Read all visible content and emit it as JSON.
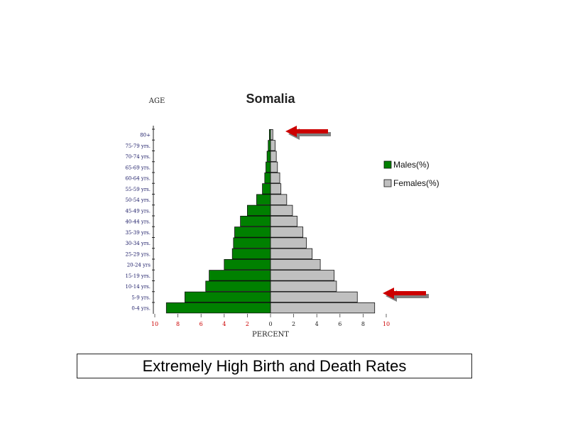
{
  "colors": {
    "male": "#008000",
    "female": "#c0c0c0",
    "arrow": "#cc0000",
    "arrow_shadow": "#808080",
    "tick_red": "#cc0000"
  },
  "chart_data": {
    "type": "bar",
    "title": "Somalia",
    "ylabel": "AGE",
    "xlabel": "PERCENT",
    "xlim": [
      -10,
      10
    ],
    "x_ticks": [
      "10",
      "8",
      "6",
      "4",
      "2",
      "0",
      "2",
      "4",
      "6",
      "8",
      "10"
    ],
    "categories": [
      "80+",
      "75-79 yrs.",
      "70-74 yrs.",
      "65-69 yrs.",
      "60-64 yrs.",
      "55-59 yrs.",
      "50-54 yrs.",
      "45-49 yrs.",
      "40-44 yrs.",
      "35-39 yrs.",
      "30-34 yrs.",
      "25-29 yrs.",
      "20-24 yrs",
      "15-19 yrs.",
      "10-14 yrs.",
      "5-9 yrs.",
      "0-4 yrs."
    ],
    "series": [
      {
        "name": "Males(%)",
        "color": "#008000",
        "values": [
          0.1,
          0.2,
          0.3,
          0.4,
          0.5,
          0.7,
          1.2,
          2.0,
          2.6,
          3.1,
          3.2,
          3.3,
          4.0,
          5.3,
          5.6,
          7.4,
          9.0
        ]
      },
      {
        "name": "Females(%)",
        "color": "#c0c0c0",
        "values": [
          0.2,
          0.4,
          0.5,
          0.6,
          0.8,
          0.9,
          1.4,
          1.9,
          2.3,
          2.8,
          3.1,
          3.6,
          4.3,
          5.5,
          5.7,
          7.5,
          9.0
        ]
      }
    ],
    "legend_position": "right",
    "annotations": [
      "arrow pointing at the 80+ bar",
      "arrow pointing at the 5-9 yrs. bar"
    ]
  },
  "caption": "Extremely High Birth and Death Rates"
}
